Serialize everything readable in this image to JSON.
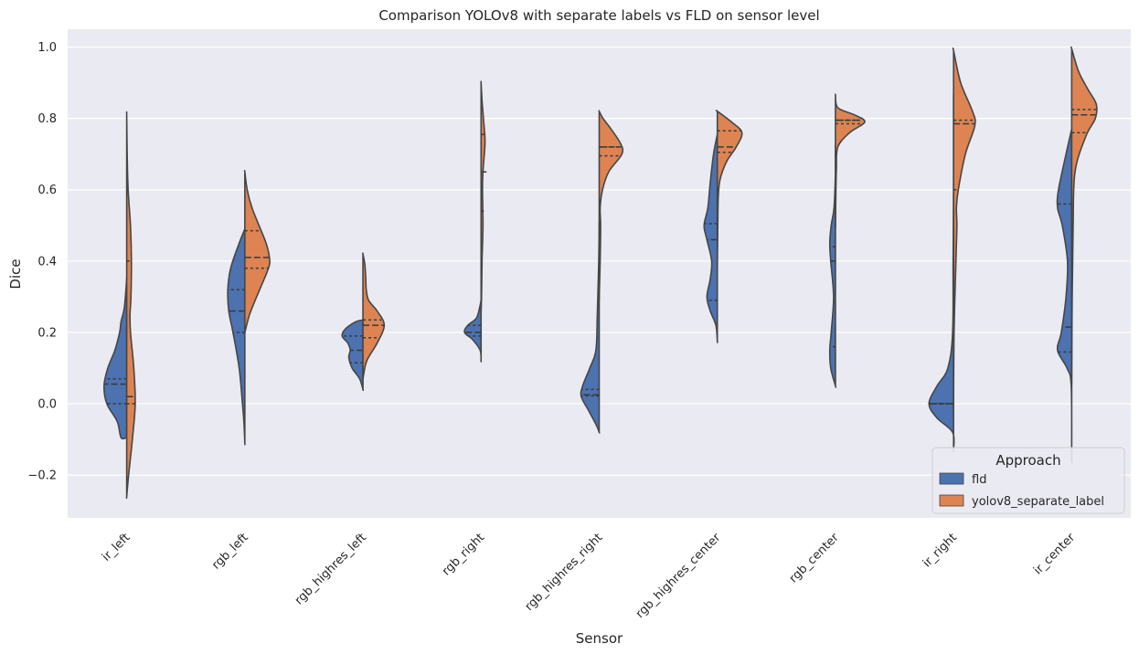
{
  "chart_data": {
    "type": "violin",
    "title": "Comparison YOLOv8 with separate labels vs FLD on sensor level",
    "xlabel": "Sensor",
    "ylabel": "Dice",
    "ylim": [
      -0.32,
      1.05
    ],
    "yticks": [
      -0.2,
      0.0,
      0.2,
      0.4,
      0.6,
      0.8,
      1.0
    ],
    "ytick_labels": [
      "−0.2",
      "0.0",
      "0.2",
      "0.4",
      "0.6",
      "0.8",
      "1.0"
    ],
    "grid": true,
    "legend": {
      "title": "Approach",
      "placement": "lower-right",
      "entries": [
        "fld",
        "yolov8_separate_label"
      ]
    },
    "categories": [
      "ir_left",
      "rgb_left",
      "rgb_highres_left",
      "rgb_right",
      "rgb_highres_right",
      "rgb_highres_center",
      "rgb_center",
      "ir_right",
      "ir_center"
    ],
    "series": [
      {
        "name": "fld",
        "color": "#4c72b0",
        "violins": [
          {
            "min": -0.095,
            "max": 0.35,
            "q1": 0.0,
            "median": 0.055,
            "q3": 0.07,
            "profile": [
              [
                -0.095,
                0.12
              ],
              [
                -0.05,
                0.2
              ],
              [
                0.0,
                0.42
              ],
              [
                0.05,
                0.48
              ],
              [
                0.1,
                0.4
              ],
              [
                0.15,
                0.25
              ],
              [
                0.2,
                0.15
              ],
              [
                0.23,
                0.12
              ],
              [
                0.27,
                0.05
              ],
              [
                0.35,
                0.0
              ]
            ]
          },
          {
            "min": -0.11,
            "max": 0.49,
            "q1": 0.2,
            "median": 0.26,
            "q3": 0.32,
            "profile": [
              [
                -0.11,
                0.0
              ],
              [
                -0.05,
                0.02
              ],
              [
                0.0,
                0.05
              ],
              [
                0.1,
                0.12
              ],
              [
                0.2,
                0.25
              ],
              [
                0.26,
                0.34
              ],
              [
                0.32,
                0.36
              ],
              [
                0.38,
                0.3
              ],
              [
                0.45,
                0.12
              ],
              [
                0.49,
                0.0
              ]
            ]
          },
          {
            "min": 0.04,
            "max": 0.235,
            "q1": 0.115,
            "median": 0.15,
            "q3": 0.19,
            "profile": [
              [
                0.04,
                0.0
              ],
              [
                0.07,
                0.07
              ],
              [
                0.1,
                0.23
              ],
              [
                0.13,
                0.3
              ],
              [
                0.15,
                0.27
              ],
              [
                0.17,
                0.32
              ],
              [
                0.19,
                0.44
              ],
              [
                0.21,
                0.37
              ],
              [
                0.23,
                0.15
              ],
              [
                0.235,
                0.0
              ]
            ]
          },
          {
            "min": 0.12,
            "max": 0.29,
            "q1": 0.19,
            "median": 0.2,
            "q3": 0.22,
            "profile": [
              [
                0.12,
                0.0
              ],
              [
                0.15,
                0.02
              ],
              [
                0.18,
                0.18
              ],
              [
                0.2,
                0.35
              ],
              [
                0.22,
                0.28
              ],
              [
                0.24,
                0.1
              ],
              [
                0.27,
                0.03
              ],
              [
                0.29,
                0.0
              ]
            ]
          },
          {
            "min": -0.08,
            "max": 0.5,
            "q1": 0.022,
            "median": 0.025,
            "q3": 0.04,
            "profile": [
              [
                -0.08,
                0.0
              ],
              [
                -0.06,
                0.06
              ],
              [
                -0.02,
                0.22
              ],
              [
                0.02,
                0.38
              ],
              [
                0.05,
                0.35
              ],
              [
                0.1,
                0.2
              ],
              [
                0.15,
                0.07
              ],
              [
                0.25,
                0.04
              ],
              [
                0.4,
                0.01
              ],
              [
                0.5,
                0.0
              ]
            ]
          },
          {
            "min": 0.175,
            "max": 0.755,
            "q1": 0.29,
            "median": 0.46,
            "q3": 0.505,
            "profile": [
              [
                0.175,
                0.0
              ],
              [
                0.22,
                0.03
              ],
              [
                0.26,
                0.15
              ],
              [
                0.3,
                0.22
              ],
              [
                0.35,
                0.15
              ],
              [
                0.4,
                0.12
              ],
              [
                0.46,
                0.22
              ],
              [
                0.5,
                0.28
              ],
              [
                0.55,
                0.2
              ],
              [
                0.62,
                0.15
              ],
              [
                0.7,
                0.08
              ],
              [
                0.755,
                0.0
              ]
            ]
          },
          {
            "min": 0.05,
            "max": 0.72,
            "q1": 0.16,
            "median": 0.4,
            "q3": 0.44,
            "profile": [
              [
                0.05,
                0.0
              ],
              [
                0.1,
                0.1
              ],
              [
                0.15,
                0.12
              ],
              [
                0.2,
                0.09
              ],
              [
                0.3,
                0.04
              ],
              [
                0.4,
                0.1
              ],
              [
                0.45,
                0.12
              ],
              [
                0.5,
                0.09
              ],
              [
                0.55,
                0.03
              ],
              [
                0.65,
                0.0
              ],
              [
                0.72,
                0.0
              ]
            ]
          },
          {
            "min": -0.13,
            "max": 0.85,
            "q1": 0.0,
            "median": 0.0,
            "q3": 0.0,
            "profile": [
              [
                -0.13,
                0.0
              ],
              [
                -0.08,
                0.02
              ],
              [
                -0.04,
                0.35
              ],
              [
                0.0,
                0.52
              ],
              [
                0.05,
                0.35
              ],
              [
                0.1,
                0.12
              ],
              [
                0.2,
                0.02
              ],
              [
                0.4,
                0.01
              ],
              [
                0.6,
                0.0
              ],
              [
                0.85,
                0.0
              ]
            ]
          },
          {
            "min": -0.15,
            "max": 0.77,
            "q1": 0.145,
            "median": 0.215,
            "q3": 0.56,
            "profile": [
              [
                -0.15,
                0.0
              ],
              [
                0.05,
                0.01
              ],
              [
                0.1,
                0.1
              ],
              [
                0.15,
                0.3
              ],
              [
                0.2,
                0.22
              ],
              [
                0.3,
                0.12
              ],
              [
                0.4,
                0.09
              ],
              [
                0.5,
                0.2
              ],
              [
                0.55,
                0.3
              ],
              [
                0.6,
                0.28
              ],
              [
                0.7,
                0.12
              ],
              [
                0.77,
                0.0
              ]
            ]
          }
        ]
      },
      {
        "name": "yolov8_separate_label",
        "color": "#dd8452",
        "violins": [
          {
            "min": -0.26,
            "max": 0.81,
            "q1": 0.0,
            "median": 0.02,
            "q3": 0.4,
            "profile": [
              [
                -0.26,
                0.0
              ],
              [
                -0.2,
                0.04
              ],
              [
                -0.1,
                0.12
              ],
              [
                0.0,
                0.18
              ],
              [
                0.1,
                0.15
              ],
              [
                0.2,
                0.08
              ],
              [
                0.25,
                0.07
              ],
              [
                0.3,
                0.09
              ],
              [
                0.4,
                0.1
              ],
              [
                0.5,
                0.08
              ],
              [
                0.6,
                0.03
              ],
              [
                0.7,
                0.01
              ],
              [
                0.81,
                0.0
              ]
            ]
          },
          {
            "min": 0.2,
            "max": 0.65,
            "q1": 0.38,
            "median": 0.41,
            "q3": 0.485,
            "profile": [
              [
                0.2,
                0.0
              ],
              [
                0.25,
                0.1
              ],
              [
                0.3,
                0.25
              ],
              [
                0.38,
                0.5
              ],
              [
                0.41,
                0.52
              ],
              [
                0.45,
                0.45
              ],
              [
                0.5,
                0.3
              ],
              [
                0.55,
                0.15
              ],
              [
                0.6,
                0.05
              ],
              [
                0.65,
                0.0
              ]
            ]
          },
          {
            "min": 0.07,
            "max": 0.42,
            "q1": 0.185,
            "median": 0.22,
            "q3": 0.235,
            "profile": [
              [
                0.07,
                0.0
              ],
              [
                0.12,
                0.08
              ],
              [
                0.17,
                0.3
              ],
              [
                0.22,
                0.45
              ],
              [
                0.26,
                0.3
              ],
              [
                0.29,
                0.12
              ],
              [
                0.32,
                0.07
              ],
              [
                0.35,
                0.06
              ],
              [
                0.39,
                0.04
              ],
              [
                0.42,
                0.0
              ]
            ]
          },
          {
            "min": 0.26,
            "max": 0.9,
            "q1": 0.54,
            "median": 0.65,
            "q3": 0.755,
            "profile": [
              [
                0.26,
                0.0
              ],
              [
                0.3,
                0.01
              ],
              [
                0.4,
                0.02
              ],
              [
                0.5,
                0.04
              ],
              [
                0.6,
                0.03
              ],
              [
                0.65,
                0.04
              ],
              [
                0.72,
                0.08
              ],
              [
                0.75,
                0.08
              ],
              [
                0.8,
                0.05
              ],
              [
                0.85,
                0.02
              ],
              [
                0.9,
                0.0
              ]
            ]
          },
          {
            "min": 0.3,
            "max": 0.82,
            "q1": 0.695,
            "median": 0.72,
            "q3": 0.72,
            "profile": [
              [
                0.3,
                0.0
              ],
              [
                0.4,
                0.02
              ],
              [
                0.5,
                0.03
              ],
              [
                0.55,
                0.02
              ],
              [
                0.6,
                0.07
              ],
              [
                0.65,
                0.2
              ],
              [
                0.7,
                0.48
              ],
              [
                0.73,
                0.45
              ],
              [
                0.77,
                0.25
              ],
              [
                0.8,
                0.08
              ],
              [
                0.82,
                0.0
              ]
            ]
          },
          {
            "min": 0.38,
            "max": 0.82,
            "q1": 0.705,
            "median": 0.72,
            "q3": 0.765,
            "profile": [
              [
                0.38,
                0.0
              ],
              [
                0.5,
                0.01
              ],
              [
                0.58,
                0.02
              ],
              [
                0.63,
                0.06
              ],
              [
                0.68,
                0.2
              ],
              [
                0.72,
                0.4
              ],
              [
                0.76,
                0.52
              ],
              [
                0.79,
                0.3
              ],
              [
                0.82,
                0.0
              ]
            ]
          },
          {
            "min": 0.5,
            "max": 0.865,
            "q1": 0.785,
            "median": 0.795,
            "q3": 0.795,
            "profile": [
              [
                0.5,
                0.0
              ],
              [
                0.6,
                0.01
              ],
              [
                0.66,
                0.02
              ],
              [
                0.72,
                0.05
              ],
              [
                0.76,
                0.3
              ],
              [
                0.79,
                0.62
              ],
              [
                0.81,
                0.4
              ],
              [
                0.83,
                0.05
              ],
              [
                0.865,
                0.0
              ]
            ]
          },
          {
            "min": 0.0,
            "max": 0.99,
            "q1": 0.6,
            "median": 0.785,
            "q3": 0.795,
            "profile": [
              [
                0.0,
                0.0
              ],
              [
                0.2,
                0.01
              ],
              [
                0.4,
                0.05
              ],
              [
                0.5,
                0.07
              ],
              [
                0.55,
                0.06
              ],
              [
                0.6,
                0.1
              ],
              [
                0.7,
                0.25
              ],
              [
                0.78,
                0.45
              ],
              [
                0.82,
                0.4
              ],
              [
                0.9,
                0.15
              ],
              [
                0.99,
                0.0
              ]
            ]
          },
          {
            "min": 0.07,
            "max": 0.995,
            "q1": 0.76,
            "median": 0.81,
            "q3": 0.825,
            "profile": [
              [
                0.07,
                0.0
              ],
              [
                0.3,
                0.01
              ],
              [
                0.5,
                0.03
              ],
              [
                0.65,
                0.07
              ],
              [
                0.75,
                0.3
              ],
              [
                0.8,
                0.5
              ],
              [
                0.84,
                0.52
              ],
              [
                0.88,
                0.35
              ],
              [
                0.93,
                0.15
              ],
              [
                0.995,
                0.0
              ]
            ]
          }
        ]
      }
    ]
  }
}
